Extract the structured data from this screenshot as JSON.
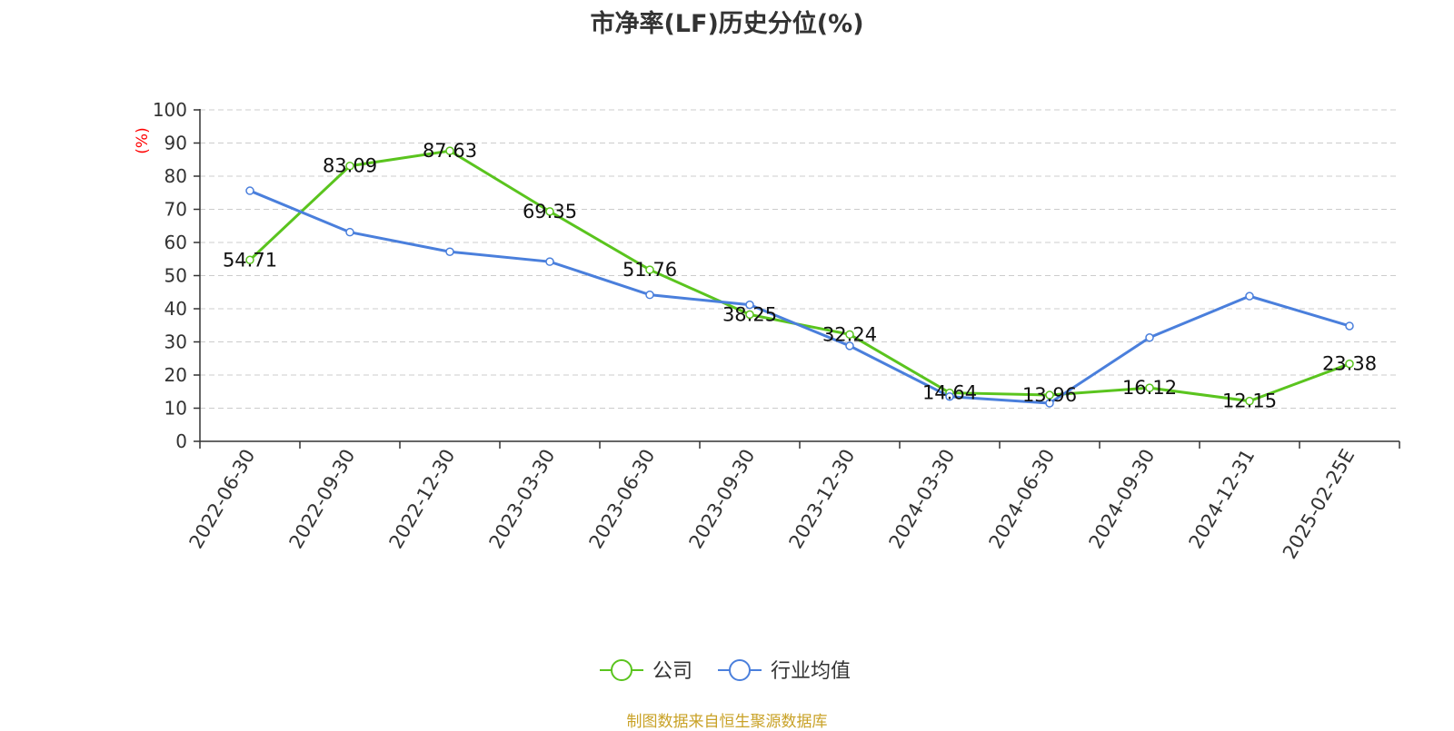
{
  "title": "市净率(LF)历史分位(%)",
  "source_note": "制图数据来自恒生聚源数据库",
  "colors": {
    "company": "#5ac41e",
    "industry": "#4a7fdc",
    "unit": "#ff0000",
    "source": "#c9a227",
    "grid": "#cccccc",
    "axis": "#333333"
  },
  "chart_data": {
    "type": "line",
    "title": "市净率(LF)历史分位(%)",
    "ylabel": "(%)",
    "ylim": [
      0,
      100
    ],
    "yticks": [
      0,
      10,
      20,
      30,
      40,
      50,
      60,
      70,
      80,
      90,
      100
    ],
    "grid": true,
    "legend_position": "bottom-center",
    "categories": [
      "2022-06-30",
      "2022-09-30",
      "2022-12-30",
      "2023-03-30",
      "2023-06-30",
      "2023-09-30",
      "2023-12-30",
      "2024-03-30",
      "2024-06-30",
      "2024-09-30",
      "2024-12-31",
      "2025-02-25E"
    ],
    "series": [
      {
        "name": "公司",
        "values": [
          54.71,
          83.09,
          87.63,
          69.35,
          51.76,
          38.25,
          32.24,
          14.64,
          13.96,
          16.12,
          12.15,
          23.38
        ],
        "labels": [
          "54.71",
          "83.09",
          "87.63",
          "69.35",
          "51.76",
          "38.25",
          "32.24",
          "14.64",
          "13.96",
          "16.12",
          "12.15",
          "23.38"
        ],
        "show_labels": true
      },
      {
        "name": "行业均值",
        "values": [
          75.6,
          63.1,
          57.2,
          54.2,
          44.2,
          41.2,
          28.8,
          13.5,
          11.5,
          31.3,
          43.8,
          34.8
        ],
        "show_labels": false
      }
    ]
  }
}
